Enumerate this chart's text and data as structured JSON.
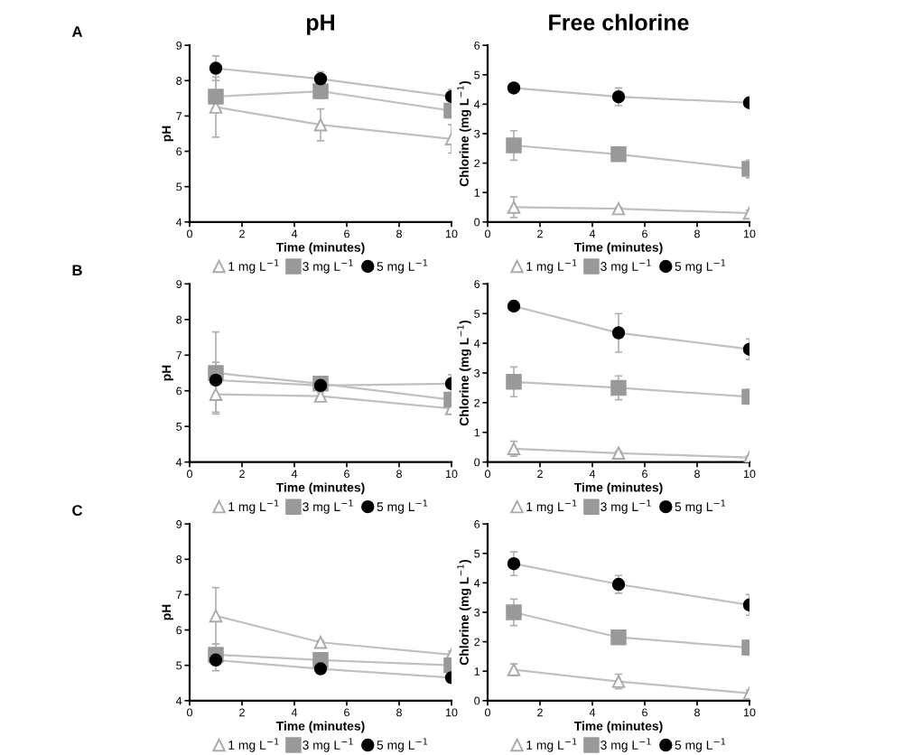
{
  "chart_data": [
    {
      "type": "line",
      "title": "pH",
      "annotations": [
        "A"
      ],
      "xlabel": "Time (minutes)",
      "ylabel": "pH",
      "x": [
        1,
        5,
        10
      ],
      "xlim": [
        0,
        10
      ],
      "xticks": [
        0,
        2,
        4,
        6,
        8,
        10
      ],
      "ylim": [
        4,
        9
      ],
      "yticks": [
        4,
        5,
        6,
        7,
        8,
        9
      ],
      "grid": false,
      "legend": "bottom",
      "series": [
        {
          "name": "1 mg L$^{−1}$",
          "color": "#aaaaaa",
          "marker": "triangle",
          "values": [
            7.25,
            6.75,
            6.35
          ],
          "errors": [
            0.85,
            0.45,
            0.4
          ]
        },
        {
          "name": "3 mg L$^{−1}$",
          "color": "#999999",
          "marker": "square",
          "values": [
            7.55,
            7.7,
            7.15
          ],
          "errors": [
            0.45,
            0.2,
            0.2
          ]
        },
        {
          "name": "5 mg L$^{−1}$",
          "color": "#000000",
          "marker": "circle",
          "values": [
            8.35,
            8.05,
            7.55
          ],
          "errors": [
            0.35,
            0.2,
            0.2
          ]
        }
      ]
    },
    {
      "type": "line",
      "title": "Free chlorine",
      "xlabel": "Time (minutes)",
      "ylabel": "Chlorine (mg L$^{−1}$)",
      "x": [
        1,
        5,
        10
      ],
      "xlim": [
        0,
        10
      ],
      "xticks": [
        0,
        2,
        4,
        6,
        8,
        10
      ],
      "ylim": [
        0,
        6
      ],
      "yticks": [
        0,
        1,
        2,
        3,
        4,
        5,
        6
      ],
      "grid": false,
      "legend": "bottom",
      "series": [
        {
          "name": "1 mg L$^{−1}$",
          "color": "#aaaaaa",
          "marker": "triangle",
          "values": [
            0.5,
            0.45,
            0.3
          ],
          "errors": [
            0.35,
            0.05,
            0.1
          ]
        },
        {
          "name": "3 mg L$^{−1}$",
          "color": "#999999",
          "marker": "square",
          "values": [
            2.6,
            2.3,
            1.8
          ],
          "errors": [
            0.5,
            0.1,
            0.3
          ]
        },
        {
          "name": "5 mg L$^{−1}$",
          "color": "#000000",
          "marker": "circle",
          "values": [
            4.55,
            4.25,
            4.05
          ],
          "errors": [
            0.1,
            0.3,
            0.1
          ]
        }
      ]
    },
    {
      "type": "line",
      "annotations": [
        "B"
      ],
      "xlabel": "Time (minutes)",
      "ylabel": "pH",
      "x": [
        1,
        5,
        10
      ],
      "xlim": [
        0,
        10
      ],
      "xticks": [
        0,
        2,
        4,
        6,
        8,
        10
      ],
      "ylim": [
        4,
        9
      ],
      "yticks": [
        4,
        5,
        6,
        7,
        8,
        9
      ],
      "grid": false,
      "legend": "bottom",
      "series": [
        {
          "name": "1 mg L$^{−1}$",
          "color": "#aaaaaa",
          "marker": "triangle",
          "values": [
            5.9,
            5.85,
            5.5
          ],
          "errors": [
            0.5,
            0.1,
            0.1
          ]
        },
        {
          "name": "3 mg L$^{−1}$",
          "color": "#999999",
          "marker": "square",
          "values": [
            6.5,
            6.2,
            5.75
          ],
          "errors": [
            1.15,
            0.15,
            0.2
          ]
        },
        {
          "name": "5 mg L$^{−1}$",
          "color": "#000000",
          "marker": "circle",
          "values": [
            6.3,
            6.15,
            6.2
          ],
          "errors": [
            0.5,
            0.1,
            0.25
          ]
        }
      ]
    },
    {
      "type": "line",
      "xlabel": "Time (minutes)",
      "ylabel": "Chlorine (mg L$^{−1}$)",
      "x": [
        1,
        5,
        10
      ],
      "xlim": [
        0,
        10
      ],
      "xticks": [
        0,
        2,
        4,
        6,
        8,
        10
      ],
      "ylim": [
        0,
        6
      ],
      "yticks": [
        0,
        1,
        2,
        3,
        4,
        5,
        6
      ],
      "grid": false,
      "legend": "bottom",
      "series": [
        {
          "name": "1 mg L$^{−1}$",
          "color": "#aaaaaa",
          "marker": "triangle",
          "values": [
            0.45,
            0.3,
            0.15
          ],
          "errors": [
            0.25,
            0.05,
            0.05
          ]
        },
        {
          "name": "3 mg L$^{−1}$",
          "color": "#999999",
          "marker": "square",
          "values": [
            2.7,
            2.5,
            2.2
          ],
          "errors": [
            0.5,
            0.4,
            0.25
          ]
        },
        {
          "name": "5 mg L$^{−1}$",
          "color": "#000000",
          "marker": "circle",
          "values": [
            5.25,
            4.35,
            3.8
          ],
          "errors": [
            0.1,
            0.65,
            0.35
          ]
        }
      ]
    },
    {
      "type": "line",
      "annotations": [
        "C"
      ],
      "xlabel": "Time (minutes)",
      "ylabel": "pH",
      "x": [
        1,
        5,
        10
      ],
      "xlim": [
        0,
        10
      ],
      "xticks": [
        0,
        2,
        4,
        6,
        8,
        10
      ],
      "ylim": [
        4,
        9
      ],
      "yticks": [
        4,
        5,
        6,
        7,
        8,
        9
      ],
      "grid": false,
      "legend": "bottom",
      "series": [
        {
          "name": "1 mg L$^{−1}$",
          "color": "#aaaaaa",
          "marker": "triangle",
          "values": [
            6.4,
            5.65,
            5.3
          ],
          "errors": [
            0.8,
            0.05,
            0.1
          ]
        },
        {
          "name": "3 mg L$^{−1}$",
          "color": "#999999",
          "marker": "square",
          "values": [
            5.3,
            5.15,
            5.0
          ],
          "errors": [
            0.3,
            0.1,
            0.1
          ]
        },
        {
          "name": "5 mg L$^{−1}$",
          "color": "#000000",
          "marker": "circle",
          "values": [
            5.15,
            4.9,
            4.65
          ],
          "errors": [
            0.3,
            0.1,
            0.1
          ]
        }
      ]
    },
    {
      "type": "line",
      "xlabel": "Time (minutes)",
      "ylabel": "Chlorine (mg L$^{−1}$)",
      "x": [
        1,
        5,
        10
      ],
      "xlim": [
        0,
        10
      ],
      "xticks": [
        0,
        2,
        4,
        6,
        8,
        10
      ],
      "ylim": [
        0,
        6
      ],
      "yticks": [
        0,
        1,
        2,
        3,
        4,
        5,
        6
      ],
      "grid": false,
      "legend": "bottom",
      "series": [
        {
          "name": "1 mg L$^{−1}$",
          "color": "#aaaaaa",
          "marker": "triangle",
          "values": [
            1.05,
            0.65,
            0.25
          ],
          "errors": [
            0.2,
            0.25,
            0.1
          ]
        },
        {
          "name": "3 mg L$^{−1}$",
          "color": "#999999",
          "marker": "square",
          "values": [
            3.0,
            2.15,
            1.8
          ],
          "errors": [
            0.45,
            0.2,
            0.25
          ]
        },
        {
          "name": "5 mg L$^{−1}$",
          "color": "#000000",
          "marker": "circle",
          "values": [
            4.65,
            3.95,
            3.25
          ],
          "errors": [
            0.4,
            0.3,
            0.35
          ]
        }
      ]
    }
  ]
}
